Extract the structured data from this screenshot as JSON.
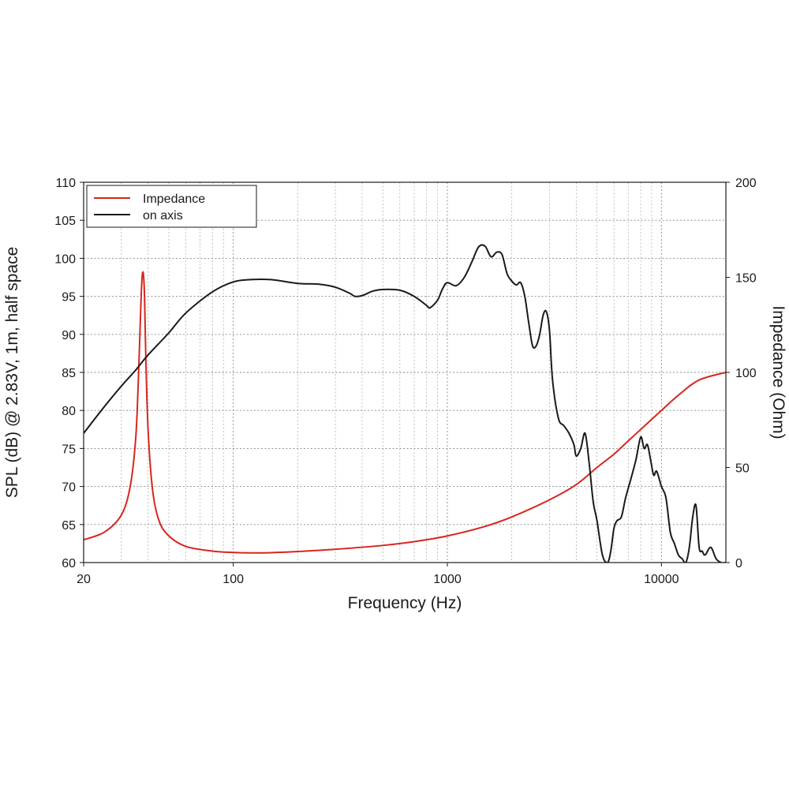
{
  "chart_data": {
    "type": "line",
    "title": "",
    "xlabel": "Frequency (Hz)",
    "ylabel": "SPL (dB) @ 2.83V, 1m, half space",
    "y2label": "Impedance (Ohm)",
    "x_scale": "log",
    "xlim": [
      20,
      20000
    ],
    "ylim": [
      60,
      110
    ],
    "y2lim": [
      0,
      200
    ],
    "x_ticks": [
      20,
      100,
      1000,
      10000
    ],
    "x_tick_labels": [
      "20",
      "100",
      "1000",
      "10000"
    ],
    "y_ticks": [
      60,
      65,
      70,
      75,
      80,
      85,
      90,
      95,
      100,
      105,
      110
    ],
    "y_tick_labels": [
      "60",
      "65",
      "70",
      "75",
      "80",
      "85",
      "90",
      "95",
      "100",
      "105",
      "110"
    ],
    "y2_ticks": [
      0,
      50,
      100,
      150,
      200
    ],
    "y2_tick_labels": [
      "0",
      "50",
      "100",
      "150",
      "200"
    ],
    "grid": true,
    "legend_position": "top-left",
    "series": [
      {
        "name": "Impedance",
        "axis": "right",
        "color": "#d7261e",
        "x": [
          20,
          25,
          30,
          33,
          35,
          36,
          37,
          37.5,
          38,
          38.5,
          39,
          40,
          42,
          45,
          50,
          60,
          80,
          100,
          125,
          150,
          200,
          300,
          500,
          700,
          1000,
          1500,
          2000,
          3000,
          4000,
          5000,
          6000,
          7000,
          8000,
          10000,
          12000,
          15000,
          20000
        ],
        "values": [
          12,
          16,
          25,
          40,
          65,
          95,
          135,
          150,
          152,
          140,
          110,
          70,
          38,
          22,
          14,
          8.5,
          6,
          5.3,
          5.1,
          5.2,
          5.8,
          7,
          9,
          11,
          14,
          19,
          24,
          33,
          41,
          50,
          57,
          64,
          70,
          80,
          88,
          96,
          100
        ]
      },
      {
        "name": "on axis",
        "axis": "left",
        "color": "#1a1a1a",
        "x": [
          20,
          25,
          30,
          35,
          40,
          50,
          60,
          80,
          100,
          120,
          150,
          200,
          250,
          300,
          350,
          370,
          400,
          450,
          500,
          600,
          700,
          800,
          830,
          900,
          950,
          1000,
          1100,
          1200,
          1300,
          1400,
          1500,
          1600,
          1700,
          1800,
          1900,
          2000,
          2100,
          2200,
          2300,
          2400,
          2500,
          2600,
          2700,
          2800,
          2900,
          3000,
          3100,
          3300,
          3500,
          3700,
          3900,
          4000,
          4200,
          4400,
          4600,
          4800,
          5000,
          5300,
          5600,
          5800,
          6000,
          6200,
          6500,
          6800,
          7200,
          7600,
          8000,
          8300,
          8600,
          8900,
          9200,
          9500,
          10000,
          10500,
          11000,
          11500,
          12000,
          12500,
          13000,
          13500,
          14000,
          14500,
          15000,
          15500,
          16000,
          17000,
          18000,
          19000,
          20000
        ],
        "values": [
          77,
          80.5,
          83.2,
          85.3,
          87.3,
          90.2,
          92.8,
          95.6,
          96.9,
          97.2,
          97.2,
          96.7,
          96.6,
          96.2,
          95.4,
          95.0,
          95.1,
          95.7,
          95.9,
          95.8,
          95.0,
          93.8,
          93.5,
          94.5,
          96.0,
          96.8,
          96.4,
          97.5,
          99.5,
          101.5,
          101.6,
          100.2,
          100.8,
          100.5,
          98.0,
          97.0,
          96.5,
          96.8,
          95.0,
          91.5,
          88.5,
          88.5,
          90.0,
          92.5,
          93.0,
          90.5,
          84.0,
          79.0,
          78.0,
          77.0,
          75.5,
          74.0,
          75.0,
          77.0,
          73.0,
          68.0,
          65.5,
          61.0,
          60.0,
          61.5,
          64.5,
          65.5,
          66.0,
          68.5,
          71.0,
          73.5,
          76.5,
          75.0,
          75.5,
          73.5,
          71.5,
          72.0,
          70.0,
          68.5,
          64.0,
          62.5,
          61.0,
          60.5,
          60.0,
          62.0,
          66.0,
          67.5,
          62.0,
          61.5,
          61.0,
          62.0,
          60.5,
          60.0,
          60.0
        ]
      }
    ]
  }
}
